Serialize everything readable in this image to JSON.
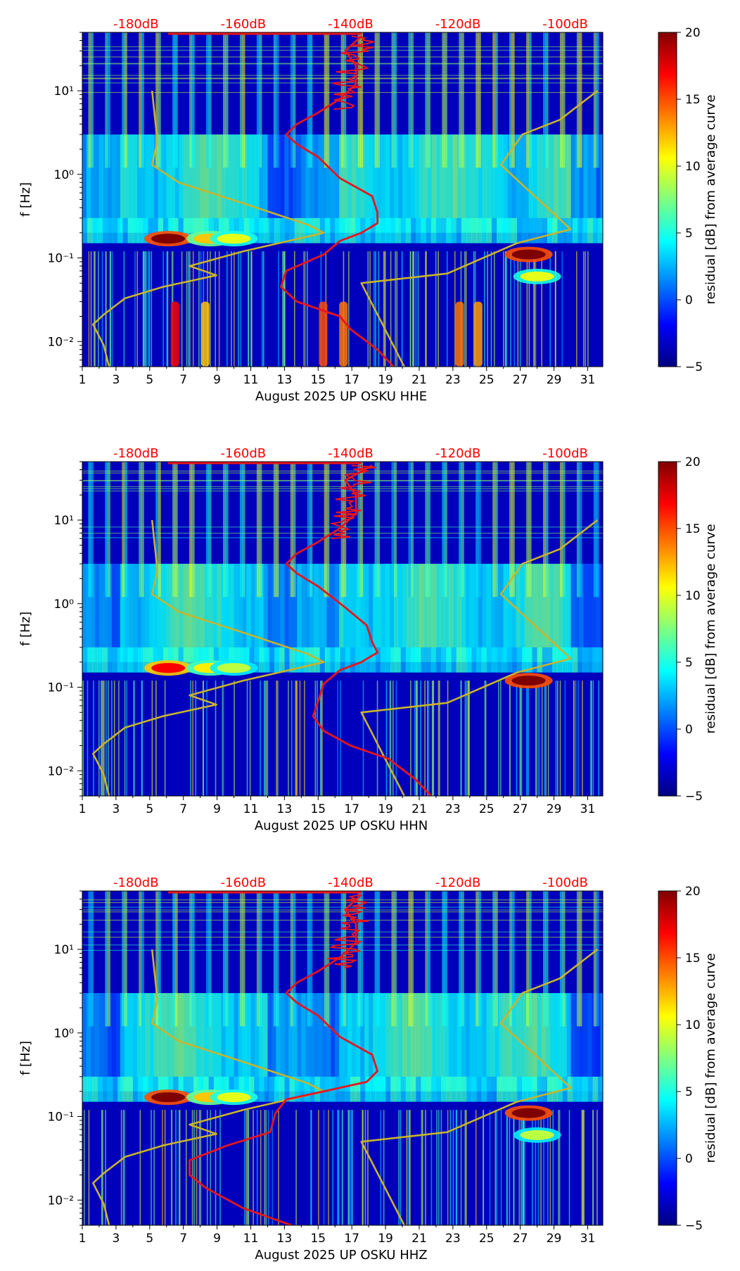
{
  "colors": {
    "colormap": [
      "#00007f",
      "#0000ff",
      "#007fff",
      "#00ffff",
      "#7fff7f",
      "#ffff00",
      "#ff7f00",
      "#ff0000",
      "#7f0000"
    ],
    "red_curve": "#e8151b",
    "yellow_curve": "#c8b42c",
    "top_db_label": "#ff0000"
  },
  "chart_data": [
    {
      "type": "heatmap",
      "xlabel": "August 2025 UP OSKU  HHE",
      "ylabel": "f [Hz]",
      "x_ticks": [
        "1",
        "3",
        "5",
        "7",
        "9",
        "11",
        "13",
        "15",
        "17",
        "19",
        "21",
        "23",
        "25",
        "27",
        "29",
        "31"
      ],
      "xlim": [
        1,
        31.9
      ],
      "ylim": [
        0.005,
        50
      ],
      "y_scale": "log",
      "y_ticks": [
        "10^-2",
        "10^-1",
        "10^0",
        "10^1"
      ],
      "top_axis_labels": [
        "-180dB",
        "-160dB",
        "-140dB",
        "-120dB",
        "-100dB"
      ],
      "top_axis_values": [
        -180,
        -160,
        -140,
        -120,
        -100
      ],
      "top_axis_range": [
        -190,
        -93
      ],
      "colorbar": {
        "label": "residual [dB] from average curve",
        "min": -5,
        "max": 20,
        "ticks": [
          "−5",
          "0",
          "5",
          "10",
          "15",
          "20"
        ]
      },
      "red_curve": {
        "db": [
          -132,
          -135,
          -140,
          -142,
          -150,
          -153,
          -152,
          -145,
          -142,
          -138,
          -135,
          -135,
          -136,
          -142,
          -146,
          -150,
          -152,
          -150,
          -146,
          -142,
          -139,
          -139,
          -141,
          -138
        ],
        "f": [
          0.005,
          0.008,
          0.014,
          0.02,
          0.03,
          0.045,
          0.07,
          0.11,
          0.16,
          0.2,
          0.26,
          0.35,
          0.55,
          0.9,
          1.6,
          2.3,
          3.0,
          4.0,
          5.5,
          8.0,
          12.0,
          20.0,
          30.0,
          45.0
        ]
      },
      "yellow_curve_left": {
        "db": [
          -185,
          -186,
          -187,
          -188,
          -186,
          -182,
          -175,
          -165,
          -170,
          -160,
          -145,
          -148,
          -160,
          -172,
          -177,
          -176,
          -177
        ],
        "f": [
          0.005,
          0.009,
          0.012,
          0.016,
          0.021,
          0.033,
          0.045,
          0.062,
          0.08,
          0.12,
          0.2,
          0.25,
          0.45,
          0.8,
          1.3,
          2.5,
          10.0
        ]
      },
      "yellow_curve_right": {
        "db": [
          -130,
          -138,
          -138,
          -122,
          -109,
          -99,
          -112,
          -108,
          -101,
          -94
        ],
        "f": [
          0.005,
          0.05,
          0.05,
          0.065,
          0.15,
          0.22,
          1.3,
          3.0,
          4.5,
          10.0
        ]
      },
      "hot_spots": [
        {
          "day": 6.1,
          "f": 0.17,
          "level": 20
        },
        {
          "day": 8.6,
          "f": 0.17,
          "level": 12
        },
        {
          "day": 10.0,
          "f": 0.17,
          "level": 10
        },
        {
          "day": 27.5,
          "f": 0.11,
          "level": 20
        },
        {
          "day": 28.0,
          "f": 0.06,
          "level": 10
        }
      ],
      "low_freq_bands": [
        {
          "day": 6.5,
          "level": 17
        },
        {
          "day": 8.3,
          "level": 12
        },
        {
          "day": 15.3,
          "level": 15
        },
        {
          "day": 16.5,
          "level": 14
        },
        {
          "day": 23.4,
          "level": 14
        },
        {
          "day": 24.5,
          "level": 13
        }
      ]
    },
    {
      "type": "heatmap",
      "xlabel": "August 2025 UP OSKU  HHN",
      "ylabel": "f [Hz]",
      "x_ticks": [
        "1",
        "3",
        "5",
        "7",
        "9",
        "11",
        "13",
        "15",
        "17",
        "19",
        "21",
        "23",
        "25",
        "27",
        "29",
        "31"
      ],
      "xlim": [
        1,
        31.9
      ],
      "ylim": [
        0.005,
        50
      ],
      "y_scale": "log",
      "y_ticks": [
        "10^-2",
        "10^-1",
        "10^0",
        "10^1"
      ],
      "top_axis_labels": [
        "-180dB",
        "-160dB",
        "-140dB",
        "-120dB",
        "-100dB"
      ],
      "top_axis_values": [
        -180,
        -160,
        -140,
        -120,
        -100
      ],
      "top_axis_range": [
        -190,
        -93
      ],
      "colorbar": {
        "label": "residual [dB] from average curve",
        "min": -5,
        "max": 20,
        "ticks": [
          "−5",
          "0",
          "5",
          "10",
          "15",
          "20"
        ]
      },
      "red_curve": {
        "db": [
          -125,
          -128,
          -133,
          -140,
          -145,
          -147,
          -146,
          -145,
          -142,
          -138,
          -135,
          -136,
          -137,
          -141,
          -146,
          -150,
          -152,
          -150,
          -146,
          -142,
          -139,
          -139,
          -141,
          -136
        ],
        "f": [
          0.005,
          0.008,
          0.014,
          0.02,
          0.03,
          0.045,
          0.07,
          0.11,
          0.16,
          0.2,
          0.26,
          0.35,
          0.55,
          0.9,
          1.6,
          2.3,
          3.0,
          4.0,
          5.5,
          8.0,
          12.0,
          20.0,
          30.0,
          45.0
        ]
      },
      "yellow_curve_left": {
        "db": [
          -185,
          -186,
          -187,
          -188,
          -186,
          -182,
          -175,
          -165,
          -170,
          -160,
          -145,
          -148,
          -160,
          -172,
          -177,
          -176,
          -177
        ],
        "f": [
          0.005,
          0.009,
          0.012,
          0.016,
          0.021,
          0.033,
          0.045,
          0.062,
          0.08,
          0.12,
          0.2,
          0.25,
          0.45,
          0.8,
          1.3,
          2.5,
          10.0
        ]
      },
      "yellow_curve_right": {
        "db": [
          -130,
          -138,
          -138,
          -122,
          -109,
          -99,
          -112,
          -108,
          -101,
          -94
        ],
        "f": [
          0.005,
          0.05,
          0.05,
          0.065,
          0.15,
          0.22,
          1.3,
          3.0,
          4.5,
          10.0
        ]
      },
      "hot_spots": [
        {
          "day": 6.1,
          "f": 0.17,
          "level": 17
        },
        {
          "day": 8.6,
          "f": 0.17,
          "level": 11
        },
        {
          "day": 10.0,
          "f": 0.17,
          "level": 9
        },
        {
          "day": 27.5,
          "f": 0.12,
          "level": 20
        }
      ],
      "low_freq_bands": []
    },
    {
      "type": "heatmap",
      "xlabel": "August 2025 UP OSKU  HHZ",
      "ylabel": "f [Hz]",
      "x_ticks": [
        "1",
        "3",
        "5",
        "7",
        "9",
        "11",
        "13",
        "15",
        "17",
        "19",
        "21",
        "23",
        "25",
        "27",
        "29",
        "31"
      ],
      "xlim": [
        1,
        31.9
      ],
      "ylim": [
        0.005,
        50
      ],
      "y_scale": "log",
      "y_ticks": [
        "10^-2",
        "10^-1",
        "10^0",
        "10^1"
      ],
      "top_axis_labels": [
        "-180dB",
        "-160dB",
        "-140dB",
        "-120dB",
        "-100dB"
      ],
      "top_axis_values": [
        -180,
        -160,
        -140,
        -120,
        -100
      ],
      "top_axis_range": [
        -190,
        -93
      ],
      "colorbar": {
        "label": "residual [dB] from average curve",
        "min": -5,
        "max": 20,
        "ticks": [
          "−5",
          "0",
          "5",
          "10",
          "15",
          "20"
        ]
      },
      "red_curve": {
        "db": [
          -151,
          -160,
          -167,
          -170,
          -170,
          -163,
          -155,
          -154,
          -152,
          -145,
          -137,
          -135,
          -136,
          -142,
          -146,
          -150,
          -152,
          -150,
          -146,
          -142,
          -139,
          -139,
          -141,
          -138
        ],
        "f": [
          0.005,
          0.008,
          0.014,
          0.02,
          0.03,
          0.045,
          0.065,
          0.11,
          0.16,
          0.2,
          0.26,
          0.35,
          0.55,
          0.9,
          1.6,
          2.3,
          3.0,
          4.0,
          5.5,
          8.0,
          12.0,
          20.0,
          30.0,
          45.0
        ]
      },
      "yellow_curve_left": {
        "db": [
          -185,
          -186,
          -187,
          -188,
          -186,
          -182,
          -175,
          -165,
          -170,
          -160,
          -145,
          -148,
          -160,
          -172,
          -177,
          -176,
          -177
        ],
        "f": [
          0.005,
          0.009,
          0.012,
          0.016,
          0.021,
          0.033,
          0.045,
          0.062,
          0.08,
          0.12,
          0.2,
          0.25,
          0.45,
          0.8,
          1.3,
          2.5,
          10.0
        ]
      },
      "yellow_curve_right": {
        "db": [
          -130,
          -138,
          -138,
          -122,
          -109,
          -99,
          -112,
          -108,
          -101,
          -94
        ],
        "f": [
          0.005,
          0.05,
          0.05,
          0.065,
          0.15,
          0.22,
          1.3,
          3.0,
          4.5,
          10.0
        ]
      },
      "hot_spots": [
        {
          "day": 6.1,
          "f": 0.17,
          "level": 20
        },
        {
          "day": 8.6,
          "f": 0.17,
          "level": 12
        },
        {
          "day": 10.0,
          "f": 0.17,
          "level": 10
        },
        {
          "day": 27.5,
          "f": 0.11,
          "level": 20
        },
        {
          "day": 28.0,
          "f": 0.06,
          "level": 9
        }
      ],
      "low_freq_bands": []
    }
  ]
}
